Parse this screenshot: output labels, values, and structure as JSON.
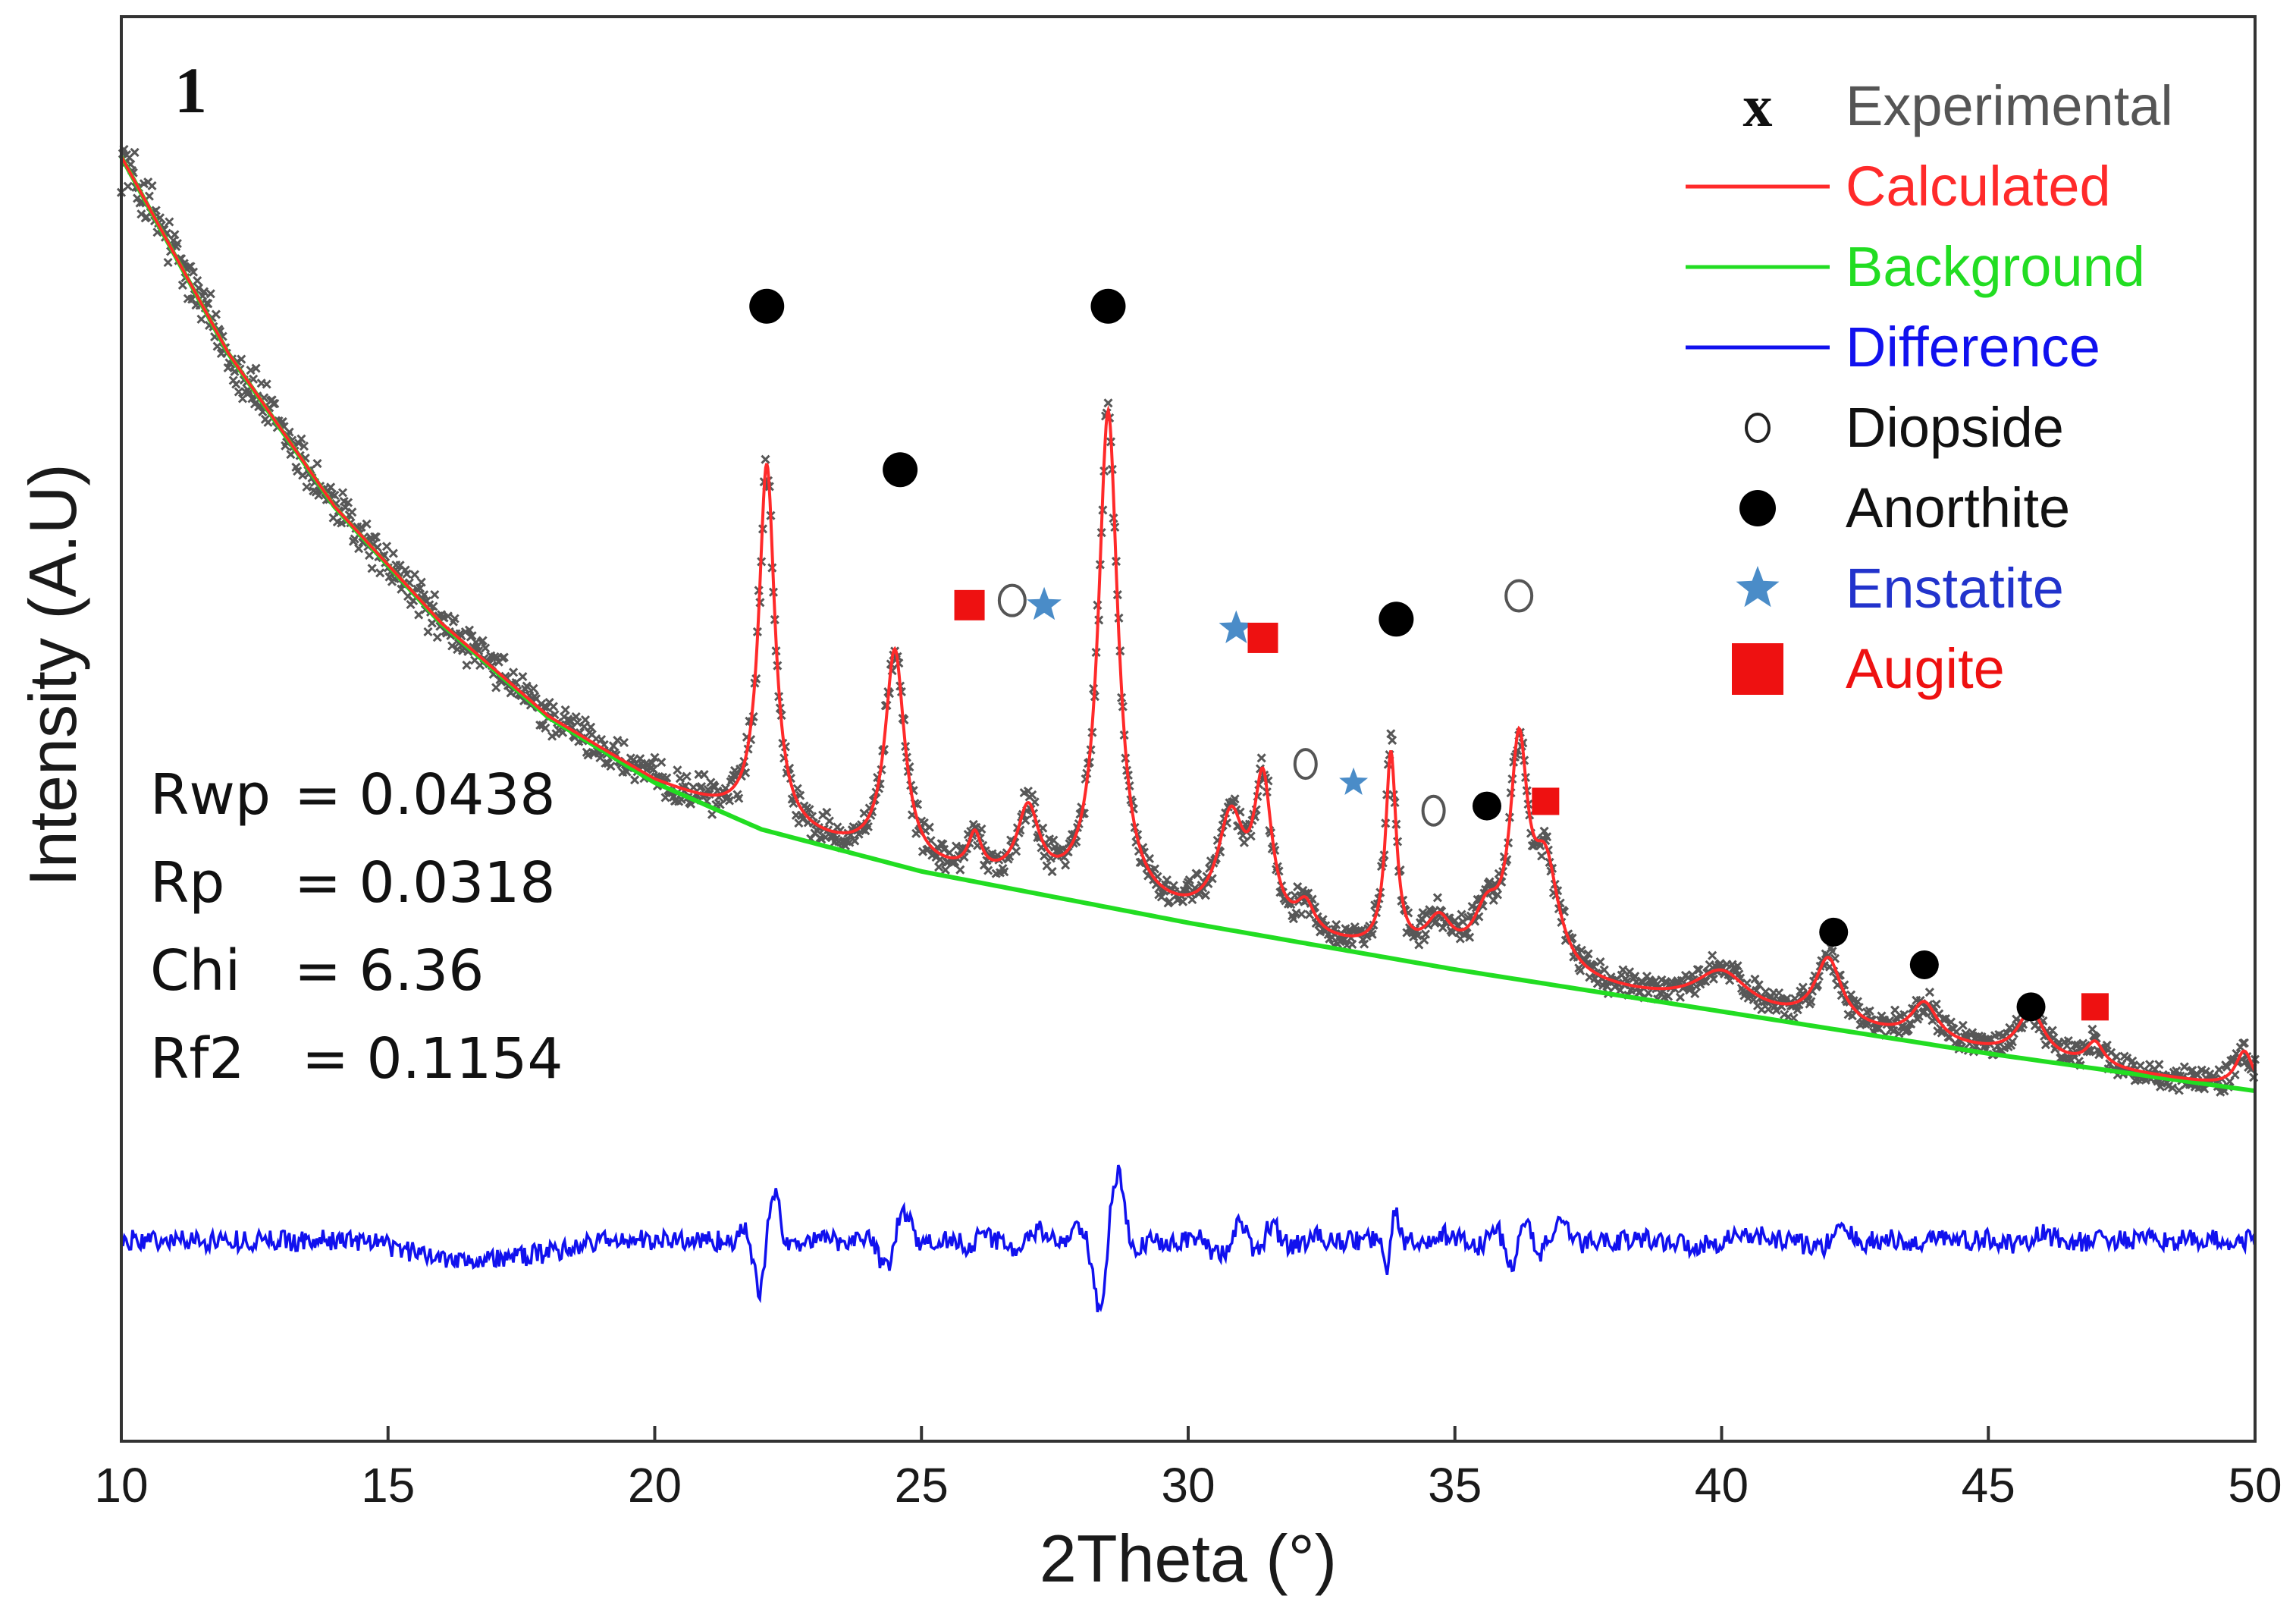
{
  "chart_data": {
    "type": "line",
    "panel_label": "1",
    "xlabel": "2Theta (°)",
    "ylabel": "Intensity (A.U)",
    "xlim": [
      10,
      50
    ],
    "ylim": [
      -0.55,
      2.5
    ],
    "x_ticks": [
      "10",
      "15",
      "20",
      "25",
      "30",
      "35",
      "40",
      "45",
      "50"
    ],
    "colors": {
      "experimental": "#3a3a3a",
      "calculated": "#ff2a2a",
      "background": "#22dd22",
      "difference": "#1111ee",
      "diopside": "#555555",
      "anorthite": "#000000",
      "enstatite": "#4a8cc8",
      "augite": "#ee1111"
    },
    "background_curve": {
      "x": [
        10,
        12,
        14,
        16,
        18,
        20,
        22,
        25,
        30,
        35,
        40,
        45,
        50
      ],
      "y": [
        2.2,
        1.78,
        1.45,
        1.2,
        1.0,
        0.86,
        0.76,
        0.67,
        0.56,
        0.46,
        0.37,
        0.28,
        0.2
      ]
    },
    "peaks": [
      {
        "x": 22.1,
        "height": 0.78,
        "width": 0.18
      },
      {
        "x": 24.5,
        "height": 0.45,
        "width": 0.22
      },
      {
        "x": 26.0,
        "height": 0.08,
        "width": 0.15
      },
      {
        "x": 27.0,
        "height": 0.16,
        "width": 0.25
      },
      {
        "x": 28.5,
        "height": 1.05,
        "width": 0.22
      },
      {
        "x": 30.8,
        "height": 0.22,
        "width": 0.3
      },
      {
        "x": 31.4,
        "height": 0.3,
        "width": 0.2
      },
      {
        "x": 32.2,
        "height": 0.06,
        "width": 0.2
      },
      {
        "x": 33.8,
        "height": 0.42,
        "width": 0.12
      },
      {
        "x": 34.7,
        "height": 0.08,
        "width": 0.3
      },
      {
        "x": 35.6,
        "height": 0.1,
        "width": 0.3
      },
      {
        "x": 36.2,
        "height": 0.45,
        "width": 0.2
      },
      {
        "x": 36.7,
        "height": 0.22,
        "width": 0.3
      },
      {
        "x": 40.0,
        "height": 0.08,
        "width": 0.6
      },
      {
        "x": 42.0,
        "height": 0.14,
        "width": 0.3
      },
      {
        "x": 43.8,
        "height": 0.08,
        "width": 0.3
      },
      {
        "x": 45.8,
        "height": 0.1,
        "width": 0.3
      },
      {
        "x": 47.0,
        "height": 0.05,
        "width": 0.2
      },
      {
        "x": 49.8,
        "height": 0.08,
        "width": 0.2
      }
    ],
    "phase_markers": [
      {
        "phase": "Anorthite",
        "x": 22.1,
        "y": 1.88
      },
      {
        "phase": "Anorthite",
        "x": 28.5,
        "y": 1.88
      },
      {
        "phase": "Anorthite",
        "x": 24.6,
        "y": 1.53
      },
      {
        "phase": "Augite",
        "x": 25.9,
        "y": 1.24
      },
      {
        "phase": "Diopside",
        "x": 26.7,
        "y": 1.25
      },
      {
        "phase": "Enstatite",
        "x": 27.3,
        "y": 1.24
      },
      {
        "phase": "Enstatite",
        "x": 30.9,
        "y": 1.19
      },
      {
        "phase": "Augite",
        "x": 31.4,
        "y": 1.17
      },
      {
        "phase": "Anorthite",
        "x": 33.9,
        "y": 1.21
      },
      {
        "phase": "Diopside",
        "x": 36.2,
        "y": 1.26
      },
      {
        "phase": "Diopside",
        "x": 32.2,
        "y": 0.9
      },
      {
        "phase": "Enstatite",
        "x": 33.1,
        "y": 0.86
      },
      {
        "phase": "Diopside",
        "x": 34.6,
        "y": 0.8
      },
      {
        "phase": "Anorthite",
        "x": 35.6,
        "y": 0.81
      },
      {
        "phase": "Augite",
        "x": 36.7,
        "y": 0.82
      },
      {
        "phase": "Anorthite",
        "x": 42.1,
        "y": 0.54
      },
      {
        "phase": "Anorthite",
        "x": 43.8,
        "y": 0.47
      },
      {
        "phase": "Anorthite",
        "x": 45.8,
        "y": 0.38
      },
      {
        "phase": "Augite",
        "x": 47.0,
        "y": 0.38
      }
    ],
    "difference_baseline": -0.12,
    "legend": {
      "position": "top-right",
      "entries": [
        {
          "label": "Experimental",
          "symbol": "x",
          "color": "#555555"
        },
        {
          "label": "Calculated",
          "symbol": "line",
          "color": "#ff2a2a"
        },
        {
          "label": "Background",
          "symbol": "line",
          "color": "#22dd22"
        },
        {
          "label": "Difference",
          "symbol": "line",
          "color": "#1111ee"
        },
        {
          "label": "Diopside",
          "symbol": "open-circle",
          "color": "#111111"
        },
        {
          "label": "Anorthite",
          "symbol": "filled-circle",
          "color": "#111111"
        },
        {
          "label": "Enstatite",
          "symbol": "star",
          "color": "#2233cc"
        },
        {
          "label": "Augite",
          "symbol": "square",
          "color": "#ee1111"
        }
      ]
    },
    "fit_statistics": [
      {
        "name": "Rwp",
        "spacer": "",
        "value": "= 0.0438"
      },
      {
        "name": "Rp",
        "spacer": "   ",
        "value": "= 0.0318"
      },
      {
        "name": "Chi",
        "spacer": "  ",
        "value": "= 6.36"
      },
      {
        "name": "Rf2",
        "spacer": "  ",
        "value": "= 0.1154"
      }
    ]
  }
}
